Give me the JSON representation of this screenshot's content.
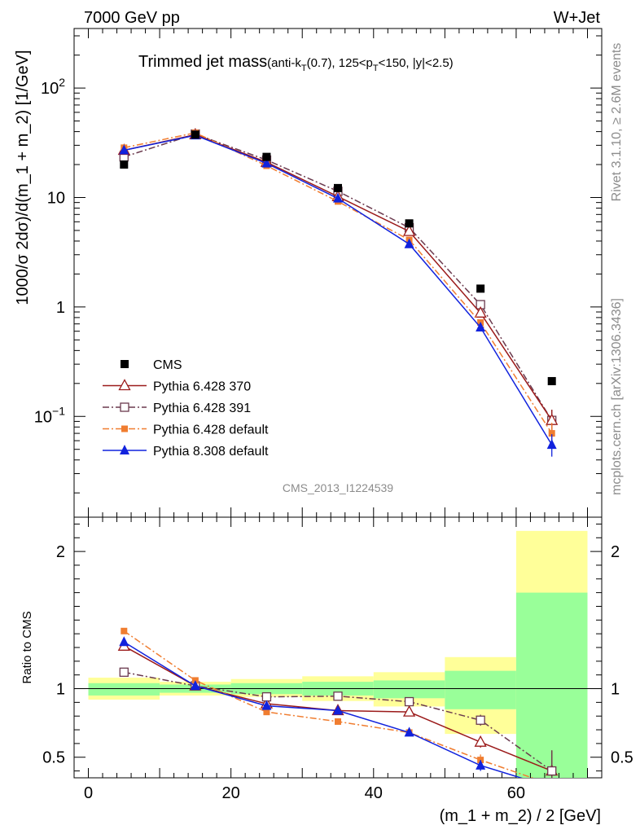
{
  "header": {
    "left": "7000 GeV pp",
    "right": "W+Jet"
  },
  "title": {
    "main": "Trimmed jet mass",
    "detail_prefix": "(anti-k",
    "detail_sub1": "T",
    "detail_mid": "(0.7), 125<p",
    "detail_sub2": "T",
    "detail_suffix": "<150, |y|<2.5)"
  },
  "analysis_label": "CMS_2013_I1224539",
  "side_text": {
    "top": "Rivet 3.1.10, ≥ 2.6M events",
    "bottom": "mcplots.cern.ch [arXiv:1306.3436]"
  },
  "axes": {
    "ylabel_main": "1000/σ 2dσ)/d(m_1 + m_2) [1/GeV]",
    "ylabel_ratio": "Ratio to CMS",
    "xlabel": "(m_1 + m_2) / 2 [GeV]"
  },
  "chart_data": [
    {
      "type": "line",
      "panel": "main",
      "y_scale": "log",
      "xlim": [
        -2,
        72
      ],
      "ylim": [
        0.012,
        350
      ],
      "x": [
        5,
        15,
        25,
        35,
        45,
        55,
        65
      ],
      "x_ticks": [
        0,
        20,
        40,
        60
      ],
      "y_ticks": [
        {
          "value": 100,
          "base": "10",
          "exp": "2"
        },
        {
          "value": 10,
          "label": "10"
        },
        {
          "value": 1,
          "label": "1"
        },
        {
          "value": 0.1,
          "base": "10",
          "exp": "−1"
        }
      ],
      "series": [
        {
          "name": "CMS",
          "color": "#000000",
          "marker": "square-filled",
          "line": "none",
          "values": [
            20,
            37.5,
            23.5,
            12.2,
            5.8,
            1.47,
            0.21
          ]
        },
        {
          "name": "Pythia 6.428 370",
          "color": "#9b1a1a",
          "marker": "triangle-open",
          "line": "solid",
          "values": [
            27,
            37.5,
            21,
            10.2,
            4.9,
            0.88,
            0.092
          ]
        },
        {
          "name": "Pythia 6.428 391",
          "color": "#6b3a4e",
          "marker": "square-open",
          "line": "dashdot",
          "values": [
            23.5,
            38,
            22,
            11.4,
            5.3,
            1.05,
            0.092
          ]
        },
        {
          "name": "Pythia 6.428 default",
          "color": "#f07d30",
          "marker": "square-filled-small",
          "line": "dashdot",
          "values": [
            28.5,
            39,
            19.5,
            9.2,
            4.1,
            0.72,
            0.07
          ]
        },
        {
          "name": "Pythia 8.308 default",
          "color": "#1122dd",
          "marker": "triangle-filled",
          "line": "solid",
          "values": [
            27,
            37,
            20.5,
            9.8,
            3.75,
            0.65,
            0.055
          ]
        }
      ]
    },
    {
      "type": "line",
      "panel": "ratio",
      "xlim": [
        -2,
        72
      ],
      "ylim": [
        0.35,
        2.25
      ],
      "x": [
        5,
        15,
        25,
        35,
        45,
        55,
        65
      ],
      "y_ticks": [
        0.5,
        1,
        2
      ],
      "reference_line": 1,
      "uncertainty_bands": [
        {
          "x0": 0,
          "x1": 10,
          "green": [
            0.95,
            1.04
          ],
          "yellow": [
            0.92,
            1.08
          ]
        },
        {
          "x0": 10,
          "x1": 20,
          "green": [
            0.97,
            1.03
          ],
          "yellow": [
            0.95,
            1.05
          ]
        },
        {
          "x0": 20,
          "x1": 30,
          "green": [
            0.96,
            1.04
          ],
          "yellow": [
            0.94,
            1.07
          ]
        },
        {
          "x0": 30,
          "x1": 40,
          "green": [
            0.95,
            1.05
          ],
          "yellow": [
            0.91,
            1.09
          ]
        },
        {
          "x0": 40,
          "x1": 50,
          "green": [
            0.93,
            1.06
          ],
          "yellow": [
            0.87,
            1.12
          ]
        },
        {
          "x0": 50,
          "x1": 60,
          "green": [
            0.85,
            1.13
          ],
          "yellow": [
            0.67,
            1.23
          ]
        },
        {
          "x0": 60,
          "x1": 70,
          "green": [
            0.25,
            1.7
          ],
          "yellow": [
            0.25,
            2.15
          ]
        }
      ],
      "series": [
        {
          "name": "Pythia 6.428 370",
          "values": [
            1.31,
            1.02,
            0.89,
            0.84,
            0.83,
            0.61,
            0.4
          ]
        },
        {
          "name": "Pythia 6.428 391",
          "values": [
            1.12,
            1.02,
            0.94,
            0.945,
            0.905,
            0.77,
            0.4
          ]
        },
        {
          "name": "Pythia 6.428 default",
          "values": [
            1.42,
            1.06,
            0.83,
            0.76,
            0.68,
            0.48,
            0.3
          ]
        },
        {
          "name": "Pythia 8.308 default",
          "values": [
            1.34,
            1.02,
            0.875,
            0.84,
            0.68,
            0.44,
            0.28
          ]
        }
      ]
    }
  ]
}
